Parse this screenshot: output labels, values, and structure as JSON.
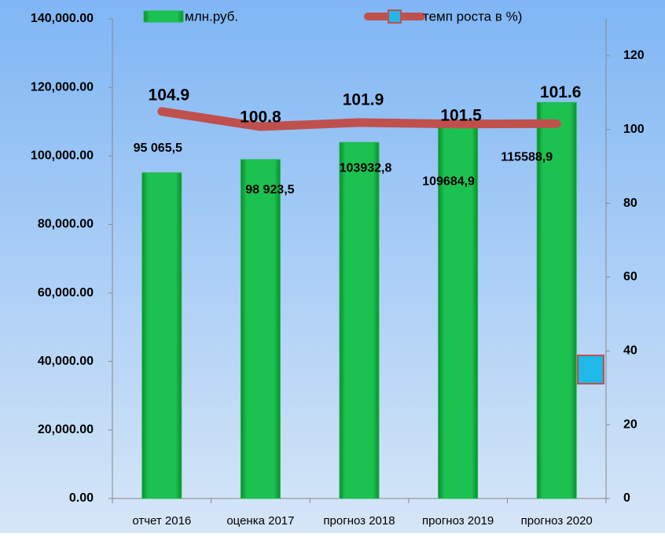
{
  "chart_data": {
    "type": "bar_line",
    "categories": [
      "отчет 2016",
      "оценка 2017",
      "прогноз 2018",
      "прогноз 2019",
      "прогноз 2020"
    ],
    "series": [
      {
        "name": "млн.руб.",
        "type": "bar",
        "color": "#1cb84a",
        "values": [
          95065.5,
          98923.5,
          103932.8,
          109684.9,
          115588.9
        ],
        "value_labels": [
          "95 065,5",
          "98 923,5",
          "103932,8",
          "109684,9",
          "115588,9"
        ]
      },
      {
        "name": "темп роста в %)",
        "type": "line",
        "axis": "y2",
        "color": "#c0504d",
        "values": [
          104.9,
          100.8,
          101.9,
          101.5,
          101.6
        ]
      }
    ],
    "ylim": [
      0,
      140000
    ],
    "yticks": [
      {
        "value": 0,
        "label": "0.00"
      },
      {
        "value": 20000,
        "label": "20,000.00"
      },
      {
        "value": 40000,
        "label": "40,000.00"
      },
      {
        "value": 60000,
        "label": "60,000.00"
      },
      {
        "value": 80000,
        "label": "80,000.00"
      },
      {
        "value": 100000,
        "label": "100,000.00"
      },
      {
        "value": 120000,
        "label": "120,000.00"
      },
      {
        "value": 140000,
        "label": "140,000.00"
      }
    ],
    "y2lim": [
      0,
      130
    ],
    "y2ticks": [
      0,
      20,
      40,
      60,
      80,
      100,
      120
    ],
    "legend": "top"
  }
}
